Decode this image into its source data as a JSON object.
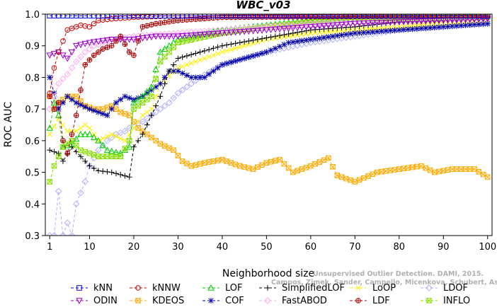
{
  "chart_data": {
    "type": "line",
    "title": "WBC_v03",
    "xlabel": "Neighborhood size",
    "ylabel": "ROC AUC",
    "xlim": [
      0,
      101
    ],
    "ylim": [
      0.3,
      1.0
    ],
    "xticks": [
      1,
      10,
      20,
      30,
      40,
      50,
      60,
      70,
      80,
      90,
      100
    ],
    "yticks": [
      0.3,
      0.4,
      0.5,
      0.6,
      0.7,
      0.8,
      0.9,
      1.0
    ],
    "grid": false,
    "legend_position": "bottom",
    "watermark_lines": [
      "Unsupervised Outlier Detection. DAMI, 2015.",
      "Campos, Zimek, Sander, Campello, Micenkova, Schubert, Assent, Houle"
    ],
    "series": [
      {
        "name": "kNN",
        "color": "#0000ee",
        "marker": "square",
        "dash": "4,3",
        "knots": [
          [
            1,
            0.995
          ],
          [
            100,
            0.995
          ]
        ]
      },
      {
        "name": "kNNW",
        "color": "#cc0000",
        "marker": "circle",
        "dash": "4,3",
        "knots": [
          [
            1,
            0.75
          ],
          [
            2,
            0.83
          ],
          [
            3,
            0.88
          ],
          [
            5,
            0.95
          ],
          [
            8,
            0.965
          ],
          [
            10,
            0.96
          ],
          [
            12,
            0.98
          ],
          [
            15,
            0.985
          ],
          [
            20,
            0.99
          ],
          [
            30,
            0.995
          ],
          [
            100,
            0.997
          ]
        ]
      },
      {
        "name": "LOF",
        "color": "#00cc00",
        "marker": "triangle",
        "dash": "4,3",
        "knots": [
          [
            1,
            0.64
          ],
          [
            2,
            0.72
          ],
          [
            3,
            0.68
          ],
          [
            4,
            0.58
          ],
          [
            6,
            0.59
          ],
          [
            8,
            0.62
          ],
          [
            10,
            0.62
          ],
          [
            12,
            0.6
          ],
          [
            14,
            0.57
          ],
          [
            17,
            0.56
          ],
          [
            19,
            0.58
          ],
          [
            20,
            0.72
          ],
          [
            22,
            0.74
          ],
          [
            24,
            0.77
          ],
          [
            26,
            0.88
          ],
          [
            30,
            0.92
          ],
          [
            40,
            0.95
          ],
          [
            50,
            0.965
          ],
          [
            60,
            0.98
          ],
          [
            70,
            0.99
          ],
          [
            100,
            0.995
          ]
        ]
      },
      {
        "name": "SimplifiedLOF",
        "color": "#000000",
        "marker": "plus",
        "dash": "4,3",
        "knots": [
          [
            1,
            0.57
          ],
          [
            3,
            0.56
          ],
          [
            4,
            0.535
          ],
          [
            6,
            0.58
          ],
          [
            8,
            0.55
          ],
          [
            10,
            0.52
          ],
          [
            12,
            0.505
          ],
          [
            15,
            0.5
          ],
          [
            19,
            0.485
          ],
          [
            20,
            0.58
          ],
          [
            22,
            0.62
          ],
          [
            24,
            0.68
          ],
          [
            26,
            0.74
          ],
          [
            28,
            0.82
          ],
          [
            30,
            0.86
          ],
          [
            35,
            0.88
          ],
          [
            40,
            0.9
          ],
          [
            50,
            0.925
          ],
          [
            60,
            0.95
          ],
          [
            70,
            0.96
          ],
          [
            80,
            0.975
          ],
          [
            100,
            0.985
          ]
        ]
      },
      {
        "name": "LoOP",
        "color": "#ffee00",
        "marker": "cross",
        "dash": "4,3",
        "knots": [
          [
            1,
            0.62
          ],
          [
            3,
            0.67
          ],
          [
            5,
            0.63
          ],
          [
            7,
            0.63
          ],
          [
            9,
            0.65
          ],
          [
            10,
            0.64
          ],
          [
            12,
            0.6
          ],
          [
            15,
            0.62
          ],
          [
            18,
            0.6
          ],
          [
            20,
            0.64
          ],
          [
            22,
            0.68
          ],
          [
            24,
            0.7
          ],
          [
            26,
            0.78
          ],
          [
            30,
            0.83
          ],
          [
            40,
            0.88
          ],
          [
            50,
            0.92
          ],
          [
            60,
            0.94
          ],
          [
            70,
            0.95
          ],
          [
            80,
            0.96
          ],
          [
            100,
            0.98
          ]
        ]
      },
      {
        "name": "LDOF",
        "color": "#b0b0ff",
        "marker": "diamond",
        "dash": "4,3",
        "knots": [
          [
            1,
            0.3
          ],
          [
            2,
            0.3
          ],
          [
            3,
            0.44
          ],
          [
            4,
            0.3
          ],
          [
            5,
            0.34
          ],
          [
            6,
            0.3
          ],
          [
            7,
            0.4
          ],
          [
            9,
            0.47
          ],
          [
            10,
            0.52
          ],
          [
            12,
            0.57
          ],
          [
            14,
            0.6
          ],
          [
            16,
            0.62
          ],
          [
            18,
            0.63
          ],
          [
            20,
            0.65
          ],
          [
            22,
            0.66
          ],
          [
            24,
            0.68
          ],
          [
            26,
            0.7
          ],
          [
            28,
            0.72
          ],
          [
            30,
            0.75
          ],
          [
            35,
            0.8
          ],
          [
            40,
            0.84
          ],
          [
            50,
            0.88
          ],
          [
            60,
            0.91
          ],
          [
            70,
            0.93
          ],
          [
            80,
            0.95
          ],
          [
            90,
            0.96
          ],
          [
            100,
            0.97
          ]
        ]
      },
      {
        "name": "ODIN",
        "color": "#9900cc",
        "marker": "triangle-down",
        "dash": "4,3",
        "knots": [
          [
            1,
            0.87
          ],
          [
            3,
            0.88
          ],
          [
            5,
            0.86
          ],
          [
            7,
            0.9
          ],
          [
            10,
            0.91
          ],
          [
            15,
            0.92
          ],
          [
            20,
            0.92
          ],
          [
            25,
            0.93
          ],
          [
            30,
            0.93
          ],
          [
            40,
            0.94
          ],
          [
            50,
            0.95
          ],
          [
            60,
            0.96
          ],
          [
            70,
            0.97
          ],
          [
            80,
            0.975
          ],
          [
            90,
            0.98
          ],
          [
            100,
            0.985
          ]
        ]
      },
      {
        "name": "KDEOS",
        "color": "#ffaa00",
        "marker": "square-x",
        "dash": "4,3",
        "knots": [
          [
            1,
            0.74
          ],
          [
            2,
            0.7
          ],
          [
            3,
            0.72
          ],
          [
            5,
            0.74
          ],
          [
            7,
            0.74
          ],
          [
            9,
            0.71
          ],
          [
            11,
            0.7
          ],
          [
            13,
            0.7
          ],
          [
            15,
            0.71
          ],
          [
            17,
            0.69
          ],
          [
            19,
            0.68
          ],
          [
            21,
            0.64
          ],
          [
            23,
            0.62
          ],
          [
            26,
            0.59
          ],
          [
            29,
            0.57
          ],
          [
            31,
            0.535
          ],
          [
            33,
            0.52
          ],
          [
            36,
            0.53
          ],
          [
            40,
            0.54
          ],
          [
            44,
            0.52
          ],
          [
            47,
            0.51
          ],
          [
            50,
            0.53
          ],
          [
            53,
            0.54
          ],
          [
            56,
            0.5
          ],
          [
            60,
            0.52
          ],
          [
            64,
            0.545
          ],
          [
            66,
            0.49
          ],
          [
            70,
            0.47
          ],
          [
            75,
            0.5
          ],
          [
            80,
            0.51
          ],
          [
            85,
            0.52
          ],
          [
            88,
            0.5
          ],
          [
            92,
            0.51
          ],
          [
            97,
            0.51
          ],
          [
            100,
            0.485
          ]
        ]
      },
      {
        "name": "COF",
        "color": "#0000aa",
        "marker": "asterisk",
        "dash": "4,3",
        "knots": [
          [
            1,
            0.8
          ],
          [
            3,
            0.7
          ],
          [
            5,
            0.74
          ],
          [
            7,
            0.72
          ],
          [
            10,
            0.7
          ],
          [
            12,
            0.69
          ],
          [
            14,
            0.68
          ],
          [
            16,
            0.72
          ],
          [
            18,
            0.74
          ],
          [
            20,
            0.73
          ],
          [
            22,
            0.74
          ],
          [
            24,
            0.76
          ],
          [
            26,
            0.78
          ],
          [
            28,
            0.82
          ],
          [
            30,
            0.82
          ],
          [
            33,
            0.8
          ],
          [
            36,
            0.8
          ],
          [
            40,
            0.84
          ],
          [
            45,
            0.86
          ],
          [
            50,
            0.88
          ],
          [
            55,
            0.91
          ],
          [
            60,
            0.92
          ],
          [
            70,
            0.94
          ],
          [
            80,
            0.95
          ],
          [
            90,
            0.96
          ],
          [
            100,
            0.97
          ]
        ]
      },
      {
        "name": "FastABOD",
        "color": "#ffaaee",
        "marker": "diamond",
        "dash": "4,3",
        "knots": [
          [
            1,
            0.7
          ],
          [
            3,
            0.78
          ],
          [
            5,
            0.81
          ],
          [
            7,
            0.85
          ],
          [
            9,
            0.88
          ],
          [
            11,
            0.9
          ],
          [
            15,
            0.92
          ],
          [
            20,
            0.93
          ],
          [
            30,
            0.94
          ],
          [
            40,
            0.95
          ],
          [
            60,
            0.97
          ],
          [
            100,
            0.985
          ]
        ]
      },
      {
        "name": "LDF",
        "color": "#aa0000",
        "marker": "circle-plus",
        "dash": "4,3",
        "knots": [
          [
            1,
            0.74
          ],
          [
            2,
            0.7
          ],
          [
            3,
            0.72
          ],
          [
            4,
            0.6
          ],
          [
            5,
            0.56
          ],
          [
            7,
            0.68
          ],
          [
            9,
            0.84
          ],
          [
            11,
            0.87
          ],
          [
            13,
            0.89
          ],
          [
            15,
            0.9
          ],
          [
            17,
            0.93
          ],
          [
            19,
            0.88
          ],
          [
            20,
            0.87
          ],
          [
            22,
            0.96
          ],
          [
            25,
            0.97
          ],
          [
            30,
            0.98
          ],
          [
            40,
            0.99
          ],
          [
            100,
            0.995
          ]
        ]
      },
      {
        "name": "INFLO",
        "color": "#88dd00",
        "marker": "square-x",
        "dash": "4,3",
        "knots": [
          [
            1,
            0.47
          ],
          [
            2,
            0.52
          ],
          [
            3,
            0.55
          ],
          [
            4,
            0.58
          ],
          [
            6,
            0.6
          ],
          [
            8,
            0.57
          ],
          [
            10,
            0.56
          ],
          [
            12,
            0.55
          ],
          [
            14,
            0.55
          ],
          [
            17,
            0.55
          ],
          [
            19,
            0.6
          ],
          [
            20,
            0.7
          ],
          [
            22,
            0.72
          ],
          [
            24,
            0.74
          ],
          [
            26,
            0.85
          ],
          [
            30,
            0.91
          ],
          [
            40,
            0.94
          ],
          [
            50,
            0.96
          ],
          [
            60,
            0.975
          ],
          [
            70,
            0.985
          ],
          [
            100,
            0.99
          ]
        ]
      }
    ]
  }
}
